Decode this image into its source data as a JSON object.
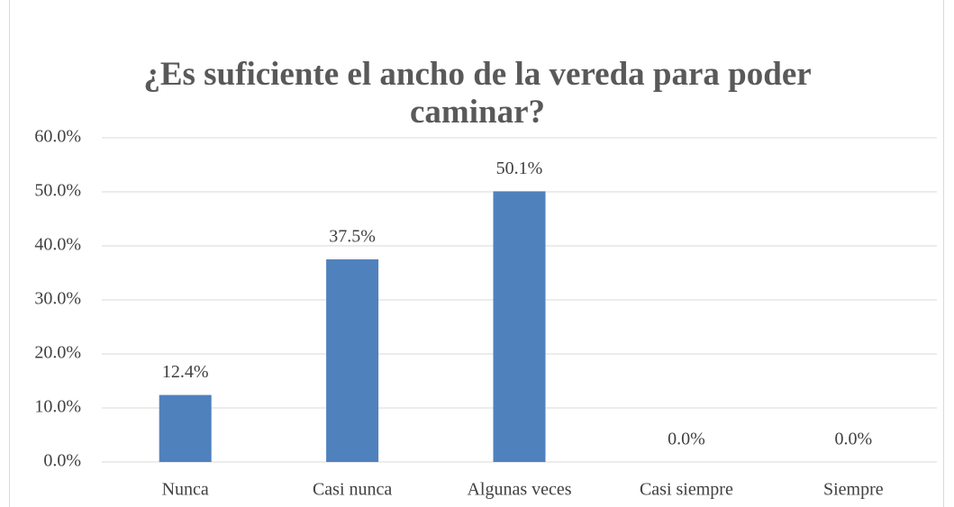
{
  "chart_data": {
    "type": "bar",
    "title": "¿Es suficiente el ancho de la vereda para poder caminar?",
    "categories": [
      "Nunca",
      "Casi nunca",
      "Algunas veces",
      "Casi siempre",
      "Siempre"
    ],
    "values": [
      12.4,
      37.5,
      50.1,
      0,
      0
    ],
    "value_labels": [
      "12.4%",
      "37.5%",
      "50.1%",
      "0.0%",
      "0.0%"
    ],
    "color": "#4f81bd",
    "ylim": [
      0,
      60
    ],
    "yticks": [
      {
        "value": 0,
        "label": "0.0%"
      },
      {
        "value": 10,
        "label": "10.0%"
      },
      {
        "value": 20,
        "label": "20.0%"
      },
      {
        "value": 30,
        "label": "30.0%"
      },
      {
        "value": 40,
        "label": "40.0%"
      },
      {
        "value": 50,
        "label": "50.0%"
      },
      {
        "value": 60,
        "label": "60.0%"
      }
    ],
    "grid": true
  }
}
